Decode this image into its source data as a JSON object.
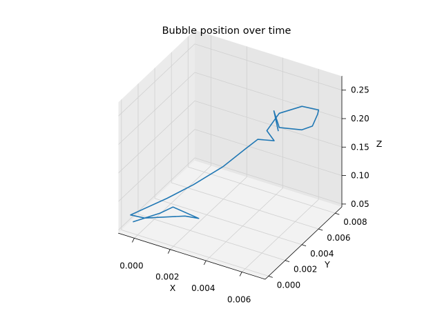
{
  "chart_data": {
    "type": "line",
    "projection": "3d",
    "title": "Bubble position over time",
    "xlabel": "X",
    "ylabel": "Y",
    "zlabel": "Z",
    "xlim": [
      -0.0009,
      0.0073
    ],
    "ylim": [
      -0.0004,
      0.0088
    ],
    "zlim": [
      0.045,
      0.275
    ],
    "x_ticks": [
      0.0,
      0.002,
      0.004,
      0.006
    ],
    "x_tick_labels": [
      "0.000",
      "0.002",
      "0.004",
      "0.006"
    ],
    "y_ticks": [
      0.0,
      0.002,
      0.004,
      0.006,
      0.008
    ],
    "y_tick_labels": [
      "0.000",
      "0.002",
      "0.004",
      "0.006",
      "0.008"
    ],
    "z_ticks": [
      0.05,
      0.1,
      0.15,
      0.2,
      0.25
    ],
    "z_tick_labels": [
      "0.05",
      "0.10",
      "0.15",
      "0.20",
      "0.25"
    ],
    "grid": true,
    "pane_color": "#f2f2f2",
    "grid_color": "#d0d0d0",
    "series": [
      {
        "color": "#1f77b4",
        "points": [
          [
            -0.0004,
            0.0003,
            0.06
          ],
          [
            0.0006,
            0.0014,
            0.07
          ],
          [
            0.001,
            0.0021,
            0.075
          ],
          [
            0.0022,
            0.0026,
            0.06
          ],
          [
            0.0019,
            0.0016,
            0.075
          ],
          [
            0.0003,
            0.0002,
            0.075
          ],
          [
            -0.0003,
            -0.0002,
            0.08
          ],
          [
            0.001,
            0.0014,
            0.1
          ],
          [
            0.002,
            0.0024,
            0.12
          ],
          [
            0.0032,
            0.0034,
            0.15
          ],
          [
            0.0041,
            0.0041,
            0.18
          ],
          [
            0.0047,
            0.0043,
            0.2
          ],
          [
            0.0052,
            0.0052,
            0.19
          ],
          [
            0.0047,
            0.0054,
            0.2
          ],
          [
            0.0052,
            0.0058,
            0.23
          ],
          [
            0.0061,
            0.0066,
            0.24
          ],
          [
            0.0067,
            0.0073,
            0.23
          ],
          [
            0.0066,
            0.0074,
            0.22
          ],
          [
            0.0064,
            0.0072,
            0.2
          ],
          [
            0.006,
            0.0068,
            0.195
          ],
          [
            0.0052,
            0.0058,
            0.205
          ],
          [
            0.005,
            0.0056,
            0.235
          ],
          [
            0.0052,
            0.0057,
            0.2
          ]
        ]
      }
    ]
  }
}
